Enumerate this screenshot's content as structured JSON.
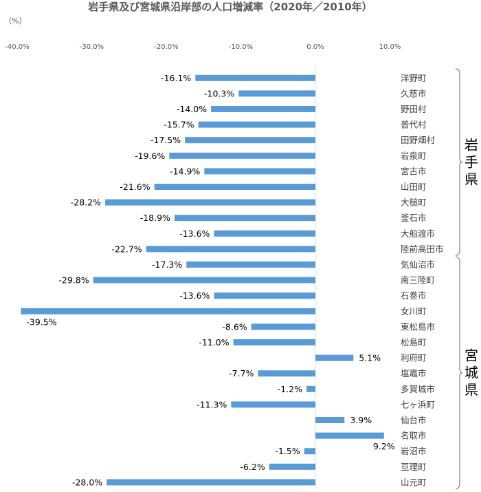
{
  "chart_data": {
    "type": "bar",
    "orientation": "horizontal",
    "title": "岩手県及び宮城県沿岸部の人口増減率（2020年／2010年）",
    "unit_label": "（%）",
    "xlim": [
      -40,
      10
    ],
    "x_ticks": [
      "-40.0%",
      "-30.0%",
      "-20.0%",
      "-10.0%",
      "0.0%",
      "10.0%"
    ],
    "x_tick_values": [
      -40,
      -30,
      -20,
      -10,
      0,
      10
    ],
    "grid": false,
    "bar_color": "#5b9bd5",
    "categories": [
      "洋野町",
      "久慈市",
      "野田村",
      "普代村",
      "田野畑村",
      "岩泉町",
      "宮古市",
      "山田町",
      "大槌町",
      "釜石市",
      "大船渡市",
      "陸前高田市",
      "気仙沼市",
      "南三陸町",
      "石巻市",
      "女川町",
      "東松島市",
      "松島町",
      "利府町",
      "塩竈市",
      "多賀城市",
      "七ヶ浜町",
      "仙台市",
      "名取市",
      "岩沼市",
      "亘理町",
      "山元町"
    ],
    "values": [
      -16.1,
      -10.3,
      -14.0,
      -15.7,
      -17.5,
      -19.6,
      -14.9,
      -21.6,
      -28.2,
      -18.9,
      -13.6,
      -22.7,
      -17.3,
      -29.8,
      -13.6,
      -39.5,
      -8.6,
      -11.0,
      5.1,
      -7.7,
      -1.2,
      -11.3,
      3.9,
      9.2,
      -1.5,
      -6.2,
      -28.0
    ],
    "value_labels": [
      "-16.1%",
      "-10.3%",
      "-14.0%",
      "-15.7%",
      "-17.5%",
      "-19.6%",
      "-14.9%",
      "-21.6%",
      "-28.2%",
      "-18.9%",
      "-13.6%",
      "-22.7%",
      "-17.3%",
      "-29.8%",
      "-13.6%",
      "-39.5%",
      "-8.6%",
      "-11.0%",
      "5.1%",
      "-7.7%",
      "-1.2%",
      "-11.3%",
      "3.9%",
      "9.2%",
      "-1.5%",
      "-6.2%",
      "-28.0%"
    ],
    "groups": [
      {
        "label": "岩手県",
        "from": 0,
        "to": 11
      },
      {
        "label": "宮城県",
        "from": 12,
        "to": 26
      }
    ]
  }
}
